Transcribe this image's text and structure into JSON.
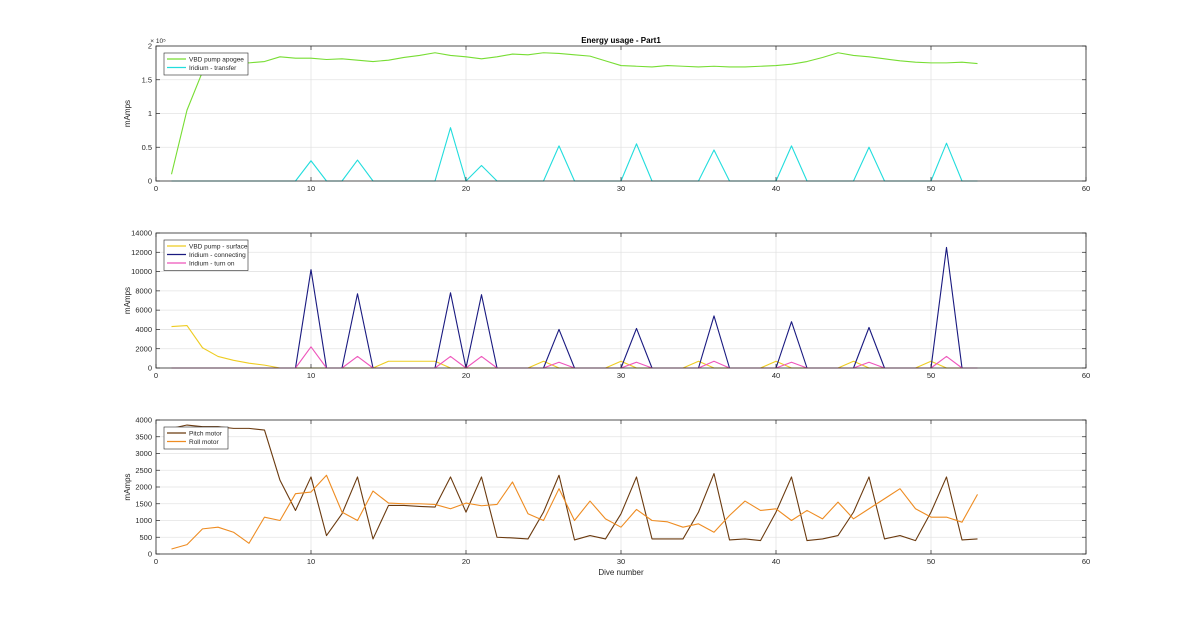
{
  "chart_data": [
    {
      "type": "line",
      "title": "Energy usage - Part1",
      "xlabel": "",
      "ylabel": "mAmps",
      "y_exponent_label": "× 10⁵",
      "xlim": [
        0,
        60
      ],
      "ylim": [
        0,
        200000
      ],
      "xticks": [
        0,
        10,
        20,
        30,
        40,
        50,
        60
      ],
      "yticks": [
        0,
        50000,
        100000,
        150000,
        200000
      ],
      "ytick_labels": [
        "0",
        "0.5",
        "1",
        "1.5",
        "2"
      ],
      "grid": true,
      "legend_position": "top-left",
      "series": [
        {
          "name": "VBD pump apogee",
          "color": "#77dd33",
          "x": [
            1,
            2,
            3,
            4,
            5,
            6,
            7,
            8,
            9,
            10,
            11,
            12,
            13,
            14,
            15,
            16,
            17,
            18,
            19,
            20,
            21,
            22,
            23,
            24,
            25,
            26,
            27,
            28,
            29,
            30,
            31,
            32,
            33,
            34,
            35,
            36,
            37,
            38,
            39,
            40,
            41,
            42,
            43,
            44,
            45,
            46,
            47,
            48,
            49,
            50,
            51,
            52,
            53
          ],
          "y": [
            10000,
            105000,
            162000,
            178000,
            176000,
            175000,
            177000,
            184000,
            182000,
            182000,
            180000,
            181000,
            179000,
            177000,
            179000,
            183000,
            186000,
            190000,
            186000,
            184000,
            181000,
            184000,
            188000,
            187000,
            190000,
            189000,
            187000,
            185000,
            178000,
            171000,
            170000,
            169000,
            171000,
            170000,
            169000,
            170000,
            169000,
            169000,
            170000,
            171000,
            173000,
            177000,
            183000,
            190000,
            186000,
            184000,
            181000,
            178000,
            176000,
            175000,
            175000,
            176000,
            174000
          ]
        },
        {
          "name": "Iridium - transfer",
          "color": "#22dddd",
          "x": [
            1,
            2,
            3,
            4,
            5,
            6,
            7,
            8,
            9,
            10,
            11,
            12,
            13,
            14,
            15,
            16,
            17,
            18,
            19,
            20,
            21,
            22,
            23,
            24,
            25,
            26,
            27,
            28,
            29,
            30,
            31,
            32,
            33,
            34,
            35,
            36,
            37,
            38,
            39,
            40,
            41,
            42,
            43,
            44,
            45,
            46,
            47,
            48,
            49,
            50,
            51,
            52,
            53
          ],
          "y": [
            0,
            0,
            0,
            0,
            0,
            0,
            0,
            0,
            0,
            30000,
            0,
            0,
            31000,
            0,
            0,
            0,
            0,
            0,
            79000,
            0,
            23000,
            0,
            0,
            0,
            0,
            52000,
            0,
            0,
            0,
            0,
            55000,
            0,
            0,
            0,
            0,
            46000,
            0,
            0,
            0,
            0,
            52000,
            0,
            0,
            0,
            0,
            50000,
            0,
            0,
            0,
            0,
            56000,
            0,
            0
          ]
        }
      ]
    },
    {
      "type": "line",
      "title": "",
      "xlabel": "",
      "ylabel": "mAmps",
      "xlim": [
        0,
        60
      ],
      "ylim": [
        0,
        14000
      ],
      "xticks": [
        0,
        10,
        20,
        30,
        40,
        50,
        60
      ],
      "yticks": [
        0,
        2000,
        4000,
        6000,
        8000,
        10000,
        12000,
        14000
      ],
      "ytick_labels": [
        "0",
        "2000",
        "4000",
        "6000",
        "8000",
        "10000",
        "12000",
        "14000"
      ],
      "grid": true,
      "legend_position": "top-left",
      "series": [
        {
          "name": "VBD pump - surface",
          "color": "#eecc22",
          "x": [
            1,
            2,
            3,
            4,
            5,
            6,
            7,
            8,
            9,
            10,
            11,
            12,
            13,
            14,
            15,
            16,
            17,
            18,
            19,
            20,
            21,
            22,
            23,
            24,
            25,
            26,
            27,
            28,
            29,
            30,
            31,
            32,
            33,
            34,
            35,
            36,
            37,
            38,
            39,
            40,
            41,
            42,
            43,
            44,
            45,
            46,
            47,
            48,
            49,
            50,
            51,
            52,
            53
          ],
          "y": [
            4300,
            4400,
            2100,
            1200,
            800,
            500,
            300,
            0,
            0,
            0,
            0,
            0,
            0,
            0,
            700,
            700,
            700,
            700,
            0,
            0,
            0,
            0,
            0,
            0,
            700,
            0,
            0,
            0,
            0,
            700,
            0,
            0,
            0,
            0,
            700,
            0,
            0,
            0,
            0,
            700,
            0,
            0,
            0,
            0,
            700,
            0,
            0,
            0,
            0,
            700,
            0,
            0,
            0
          ]
        },
        {
          "name": "Iridium - connecting",
          "color": "#1a1a80",
          "x": [
            1,
            2,
            3,
            4,
            5,
            6,
            7,
            8,
            9,
            10,
            11,
            12,
            13,
            14,
            15,
            16,
            17,
            18,
            19,
            20,
            21,
            22,
            23,
            24,
            25,
            26,
            27,
            28,
            29,
            30,
            31,
            32,
            33,
            34,
            35,
            36,
            37,
            38,
            39,
            40,
            41,
            42,
            43,
            44,
            45,
            46,
            47,
            48,
            49,
            50,
            51,
            52,
            53
          ],
          "y": [
            0,
            0,
            0,
            0,
            0,
            0,
            0,
            0,
            0,
            10200,
            0,
            0,
            7700,
            0,
            0,
            0,
            0,
            0,
            7800,
            0,
            7600,
            0,
            0,
            0,
            0,
            4000,
            0,
            0,
            0,
            0,
            4100,
            0,
            0,
            0,
            0,
            5400,
            0,
            0,
            0,
            0,
            4800,
            0,
            0,
            0,
            0,
            4200,
            0,
            0,
            0,
            0,
            12500,
            0,
            0
          ]
        },
        {
          "name": "Iridium - turn on",
          "color": "#ee55bb",
          "x": [
            1,
            2,
            3,
            4,
            5,
            6,
            7,
            8,
            9,
            10,
            11,
            12,
            13,
            14,
            15,
            16,
            17,
            18,
            19,
            20,
            21,
            22,
            23,
            24,
            25,
            26,
            27,
            28,
            29,
            30,
            31,
            32,
            33,
            34,
            35,
            36,
            37,
            38,
            39,
            40,
            41,
            42,
            43,
            44,
            45,
            46,
            47,
            48,
            49,
            50,
            51,
            52,
            53
          ],
          "y": [
            0,
            0,
            0,
            0,
            0,
            0,
            0,
            0,
            0,
            2200,
            0,
            0,
            1200,
            0,
            0,
            0,
            0,
            0,
            1200,
            0,
            1200,
            0,
            0,
            0,
            0,
            600,
            0,
            0,
            0,
            0,
            600,
            0,
            0,
            0,
            0,
            700,
            0,
            0,
            0,
            0,
            600,
            0,
            0,
            0,
            0,
            600,
            0,
            0,
            0,
            0,
            1200,
            0,
            0
          ]
        }
      ]
    },
    {
      "type": "line",
      "title": "",
      "xlabel": "Dive number",
      "ylabel": "mAmps",
      "xlim": [
        0,
        60
      ],
      "ylim": [
        0,
        4000
      ],
      "xticks": [
        0,
        10,
        20,
        30,
        40,
        50,
        60
      ],
      "yticks": [
        0,
        500,
        1000,
        1500,
        2000,
        2500,
        3000,
        3500,
        4000
      ],
      "ytick_labels": [
        "0",
        "500",
        "1000",
        "1500",
        "2000",
        "2500",
        "3000",
        "3500",
        "4000"
      ],
      "grid": true,
      "legend_position": "top-left",
      "series": [
        {
          "name": "Pitch motor",
          "color": "#6b3a0f",
          "x": [
            1,
            2,
            3,
            4,
            5,
            6,
            7,
            8,
            9,
            10,
            11,
            12,
            13,
            14,
            15,
            16,
            17,
            18,
            19,
            20,
            21,
            22,
            23,
            24,
            25,
            26,
            27,
            28,
            29,
            30,
            31,
            32,
            33,
            34,
            35,
            36,
            37,
            38,
            39,
            40,
            41,
            42,
            43,
            44,
            45,
            46,
            47,
            48,
            49,
            50,
            51,
            52,
            53
          ],
          "y": [
            3750,
            3850,
            3800,
            3800,
            3750,
            3750,
            3700,
            2200,
            1300,
            2300,
            550,
            1200,
            2300,
            450,
            1450,
            1450,
            1420,
            1400,
            2300,
            1250,
            2300,
            500,
            480,
            450,
            1250,
            2350,
            420,
            550,
            450,
            1200,
            2300,
            450,
            450,
            450,
            1250,
            2400,
            420,
            450,
            400,
            1250,
            2300,
            400,
            450,
            550,
            1250,
            2300,
            450,
            550,
            400,
            1250,
            2300,
            420,
            450
          ]
        },
        {
          "name": "Roll motor",
          "color": "#ee8c22",
          "x": [
            1,
            2,
            3,
            4,
            5,
            6,
            7,
            8,
            9,
            10,
            11,
            12,
            13,
            14,
            15,
            16,
            17,
            18,
            19,
            20,
            21,
            22,
            23,
            24,
            25,
            26,
            27,
            28,
            29,
            30,
            31,
            32,
            33,
            34,
            35,
            36,
            37,
            38,
            39,
            40,
            41,
            42,
            43,
            44,
            45,
            46,
            47,
            48,
            49,
            50,
            51,
            52,
            53
          ],
          "y": [
            150,
            280,
            750,
            800,
            650,
            320,
            1100,
            1000,
            1800,
            1850,
            2350,
            1250,
            1000,
            1880,
            1520,
            1500,
            1500,
            1480,
            1350,
            1520,
            1440,
            1480,
            2150,
            1200,
            1000,
            1950,
            1000,
            1580,
            1050,
            800,
            1330,
            1000,
            960,
            800,
            900,
            650,
            1150,
            1580,
            1300,
            1350,
            1000,
            1300,
            1050,
            1550,
            1050,
            1350,
            1650,
            1950,
            1350,
            1100,
            1100,
            950,
            1780
          ]
        }
      ]
    }
  ]
}
